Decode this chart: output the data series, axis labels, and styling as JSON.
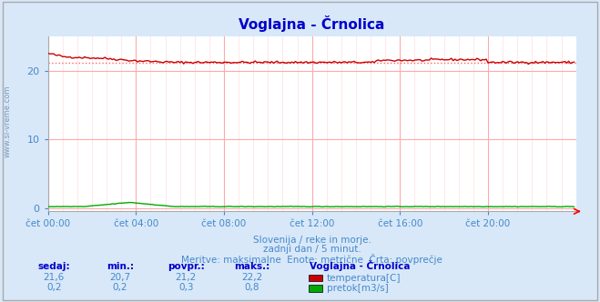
{
  "title": "Voglajna - Črnolica",
  "title_color": "#0000cc",
  "bg_color": "#d8e8f8",
  "plot_bg_color": "#ffffff",
  "grid_color_major": "#ffaaaa",
  "grid_color_minor": "#ffdddd",
  "text_color": "#4488cc",
  "watermark": "www.si-vreme.com",
  "subtitle_lines": [
    "Slovenija / reke in morje.",
    "zadnji dan / 5 minut.",
    "Meritve: maksimalne  Enote: metrične  Črta: povprečje"
  ],
  "xtick_labels": [
    "čet 00:00",
    "čet 04:00",
    "čet 08:00",
    "čet 12:00",
    "čet 16:00",
    "čet 20:00"
  ],
  "xtick_positions": [
    0,
    48,
    96,
    144,
    192,
    240
  ],
  "ytick_positions": [
    0,
    10,
    20
  ],
  "ytick_labels": [
    "0",
    "10",
    "20"
  ],
  "ylim": [
    -0.5,
    25
  ],
  "xlim": [
    0,
    288
  ],
  "temp_avg": 21.2,
  "temp_color": "#cc0000",
  "flow_color": "#00aa00",
  "avg_line_color": "#ff6666",
  "border_color": "#aaaaaa",
  "table_headers": [
    "sedaj:",
    "min.:",
    "povpr.:",
    "maks.:"
  ],
  "table_header_color": "#0000cc",
  "table_values_temp": [
    "21,6",
    "20,7",
    "21,2",
    "22,2"
  ],
  "table_values_flow": [
    "0,2",
    "0,2",
    "0,3",
    "0,8"
  ],
  "station_name": "Voglajna - Črnolica",
  "legend_temp": "temperatura[C]",
  "legend_flow": "pretok[m3/s]",
  "n_points": 288
}
